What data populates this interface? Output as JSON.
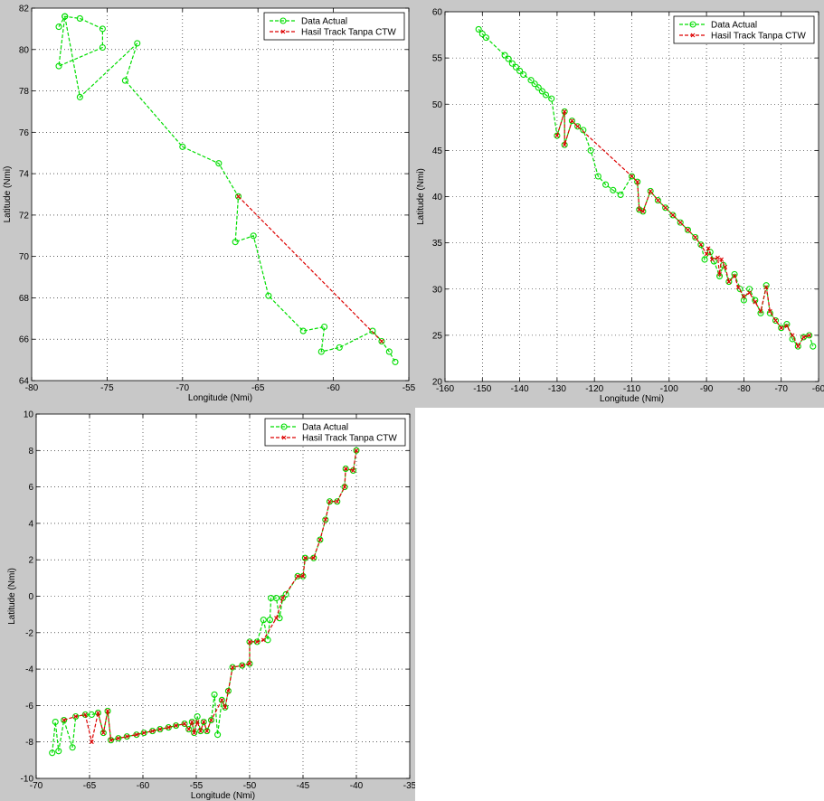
{
  "chart_data": [
    {
      "type": "line",
      "xlabel": "Longitude (Nmi)",
      "ylabel": "Latitude (Nmi)",
      "xlim": [
        -80,
        -55
      ],
      "ylim": [
        64,
        82
      ],
      "xticks": [
        -80,
        -75,
        -70,
        -65,
        -60,
        -55
      ],
      "yticks": [
        64,
        66,
        68,
        70,
        72,
        74,
        76,
        78,
        80,
        82
      ],
      "xtick_labels": [
        "-80",
        "-75",
        "-70",
        "-65",
        "-60",
        "-55"
      ],
      "ytick_labels": [
        "64",
        "66",
        "68",
        "70",
        "72",
        "74",
        "76",
        "78",
        "80",
        "82"
      ],
      "grid": true,
      "legend": "top-right",
      "series": [
        {
          "name": "Data Actual",
          "color": "#00dd00",
          "marker": "circle",
          "line": "dashed",
          "points": [
            [
              -78.2,
              81.1
            ],
            [
              -77.8,
              81.6
            ],
            [
              -76.8,
              81.5
            ],
            [
              -75.3,
              81.0
            ],
            [
              -75.3,
              80.1
            ],
            [
              -78.2,
              79.2
            ],
            [
              -77.8,
              81.6
            ],
            [
              -76.8,
              77.7
            ],
            [
              -73.0,
              80.3
            ],
            [
              -73.8,
              78.5
            ],
            [
              -70.0,
              75.3
            ],
            [
              -67.6,
              74.5
            ],
            [
              -66.3,
              72.9
            ],
            [
              -66.5,
              70.7
            ],
            [
              -65.3,
              71.0
            ],
            [
              -64.3,
              68.1
            ],
            [
              -62.0,
              66.4
            ],
            [
              -60.6,
              66.6
            ],
            [
              -60.8,
              65.4
            ],
            [
              -59.6,
              65.6
            ],
            [
              -57.4,
              66.4
            ],
            [
              -56.8,
              65.9
            ],
            [
              -56.3,
              65.4
            ],
            [
              -55.9,
              64.9
            ]
          ]
        },
        {
          "name": "Hasil Track Tanpa CTW",
          "color": "#dd0000",
          "marker": "x",
          "line": "dashed",
          "points": [
            [
              -66.3,
              72.9
            ],
            [
              -56.8,
              65.9
            ]
          ]
        }
      ]
    },
    {
      "type": "line",
      "xlabel": "Longitude (Nmi)",
      "ylabel": "Latitude (Nmi)",
      "xlim": [
        -160,
        -60
      ],
      "ylim": [
        20,
        60
      ],
      "xticks": [
        -160,
        -150,
        -140,
        -130,
        -120,
        -110,
        -100,
        -90,
        -80,
        -70,
        -60
      ],
      "yticks": [
        20,
        25,
        30,
        35,
        40,
        45,
        50,
        55,
        60
      ],
      "xtick_labels": [
        "-160",
        "-150",
        "-140",
        "-130",
        "-120",
        "-110",
        "-100",
        "-90",
        "-80",
        "-70",
        "-60"
      ],
      "ytick_labels": [
        "20",
        "25",
        "30",
        "35",
        "40",
        "45",
        "50",
        "55",
        "60"
      ],
      "grid": true,
      "legend": "top-right",
      "series": [
        {
          "name": "Data Actual",
          "color": "#00dd00",
          "marker": "circle",
          "line": "dashed",
          "points": [
            [
              -151,
              58.1
            ],
            [
              -150,
              57.6
            ],
            [
              -149,
              57.2
            ],
            [
              -144,
              55.3
            ],
            [
              -143,
              54.9
            ],
            [
              -142,
              54.4
            ],
            [
              -141,
              54.0
            ],
            [
              -140,
              53.6
            ],
            [
              -139,
              53.2
            ],
            [
              -137,
              52.6
            ],
            [
              -136,
              52.2
            ],
            [
              -135,
              51.8
            ],
            [
              -134,
              51.4
            ],
            [
              -133,
              51.0
            ],
            [
              -131.5,
              50.6
            ],
            [
              -130,
              46.6
            ],
            [
              -128,
              49.2
            ],
            [
              -128,
              45.6
            ],
            [
              -126,
              48.2
            ],
            [
              -124.5,
              47.6
            ],
            [
              -123,
              47.2
            ],
            [
              -121,
              45.0
            ],
            [
              -119,
              42.2
            ],
            [
              -117,
              41.3
            ],
            [
              -115,
              40.7
            ],
            [
              -113,
              40.2
            ],
            [
              -110,
              42.2
            ],
            [
              -108.5,
              41.6
            ],
            [
              -108,
              38.6
            ],
            [
              -107,
              38.4
            ],
            [
              -105,
              40.6
            ],
            [
              -103,
              39.6
            ],
            [
              -101,
              38.8
            ],
            [
              -99,
              38.0
            ],
            [
              -97,
              37.2
            ],
            [
              -95,
              36.4
            ],
            [
              -93,
              35.6
            ],
            [
              -91.5,
              34.8
            ],
            [
              -90.5,
              33.2
            ],
            [
              -89,
              34.0
            ],
            [
              -88,
              33.0
            ],
            [
              -86.5,
              31.4
            ],
            [
              -85.5,
              32.6
            ],
            [
              -84,
              30.8
            ],
            [
              -82.5,
              31.6
            ],
            [
              -81,
              30.0
            ],
            [
              -80,
              28.8
            ],
            [
              -78.5,
              30.0
            ],
            [
              -77,
              28.8
            ],
            [
              -75.5,
              27.4
            ],
            [
              -74,
              30.4
            ],
            [
              -73,
              27.4
            ],
            [
              -71.5,
              26.6
            ],
            [
              -70,
              25.8
            ],
            [
              -68.5,
              26.2
            ],
            [
              -67,
              24.6
            ],
            [
              -65.5,
              23.8
            ],
            [
              -64,
              24.8
            ],
            [
              -62.5,
              25.0
            ],
            [
              -61.5,
              23.8
            ]
          ]
        },
        {
          "name": "Hasil Track Tanpa CTW",
          "color": "#dd0000",
          "marker": "x",
          "line": "dashed",
          "points": [
            [
              -130,
              46.6
            ],
            [
              -128,
              49.2
            ],
            [
              -128,
              45.6
            ],
            [
              -126,
              48.2
            ],
            [
              -124.5,
              47.6
            ],
            [
              -110,
              42.2
            ],
            [
              -108.5,
              41.6
            ],
            [
              -108,
              38.6
            ],
            [
              -107,
              38.4
            ],
            [
              -105,
              40.6
            ],
            [
              -103,
              39.6
            ],
            [
              -101,
              38.8
            ],
            [
              -99,
              38.0
            ],
            [
              -97,
              37.2
            ],
            [
              -95,
              36.4
            ],
            [
              -93,
              35.6
            ],
            [
              -91.5,
              34.8
            ],
            [
              -90,
              33.8
            ],
            [
              -89.5,
              34.4
            ],
            [
              -88.5,
              33.2
            ],
            [
              -87,
              33.4
            ],
            [
              -86.5,
              31.6
            ],
            [
              -86,
              33.2
            ],
            [
              -85,
              32.4
            ],
            [
              -84,
              30.8
            ],
            [
              -82.5,
              31.4
            ],
            [
              -81.5,
              30.2
            ],
            [
              -80,
              29.2
            ],
            [
              -78.5,
              29.6
            ],
            [
              -77,
              28.6
            ],
            [
              -75.5,
              27.6
            ],
            [
              -74,
              30.2
            ],
            [
              -73,
              27.6
            ],
            [
              -71.5,
              26.6
            ],
            [
              -70,
              25.8
            ],
            [
              -68.5,
              26.0
            ],
            [
              -67,
              25.0
            ],
            [
              -65.5,
              23.8
            ],
            [
              -64,
              24.8
            ],
            [
              -62.5,
              25.0
            ]
          ]
        }
      ]
    },
    {
      "type": "line",
      "xlabel": "Longitude (Nmi)",
      "ylabel": "Latitude (Nmi)",
      "xlim": [
        -70,
        -35
      ],
      "ylim": [
        -10,
        10
      ],
      "xticks": [
        -70,
        -65,
        -60,
        -55,
        -50,
        -45,
        -40,
        -35
      ],
      "yticks": [
        -10,
        -8,
        -6,
        -4,
        -2,
        0,
        2,
        4,
        6,
        8,
        10
      ],
      "xtick_labels": [
        "-70",
        "-65",
        "-60",
        "-55",
        "-50",
        "-45",
        "-40",
        "-35"
      ],
      "ytick_labels": [
        "-10",
        "-8",
        "-6",
        "-4",
        "-2",
        "0",
        "2",
        "4",
        "6",
        "8",
        "10"
      ],
      "grid": true,
      "legend": "top-right",
      "series": [
        {
          "name": "Data Actual",
          "color": "#00dd00",
          "marker": "circle",
          "line": "dashed",
          "points": [
            [
              -68.5,
              -8.6
            ],
            [
              -68.2,
              -6.9
            ],
            [
              -67.9,
              -8.5
            ],
            [
              -67.4,
              -6.8
            ],
            [
              -66.6,
              -8.3
            ],
            [
              -66.3,
              -6.6
            ],
            [
              -65.4,
              -6.5
            ],
            [
              -64.8,
              -6.5
            ],
            [
              -64.2,
              -6.4
            ],
            [
              -63.7,
              -7.5
            ],
            [
              -63.3,
              -6.3
            ],
            [
              -63.0,
              -7.9
            ],
            [
              -62.3,
              -7.8
            ],
            [
              -61.5,
              -7.7
            ],
            [
              -60.6,
              -7.6
            ],
            [
              -59.9,
              -7.5
            ],
            [
              -59.1,
              -7.4
            ],
            [
              -58.4,
              -7.3
            ],
            [
              -57.6,
              -7.2
            ],
            [
              -56.9,
              -7.1
            ],
            [
              -56.1,
              -7.0
            ],
            [
              -55.7,
              -7.3
            ],
            [
              -55.4,
              -6.9
            ],
            [
              -55.2,
              -7.5
            ],
            [
              -54.9,
              -6.6
            ],
            [
              -54.6,
              -7.4
            ],
            [
              -54.3,
              -6.9
            ],
            [
              -54.0,
              -7.4
            ],
            [
              -53.6,
              -6.8
            ],
            [
              -53.3,
              -5.4
            ],
            [
              -53.0,
              -7.6
            ],
            [
              -52.6,
              -5.7
            ],
            [
              -52.3,
              -6.1
            ],
            [
              -52.0,
              -5.2
            ],
            [
              -51.6,
              -3.9
            ],
            [
              -50.7,
              -3.8
            ],
            [
              -50.0,
              -3.7
            ],
            [
              -50.0,
              -2.5
            ],
            [
              -49.3,
              -2.5
            ],
            [
              -48.7,
              -1.3
            ],
            [
              -48.3,
              -2.4
            ],
            [
              -48.1,
              -1.3
            ],
            [
              -48.0,
              -0.1
            ],
            [
              -47.5,
              -0.1
            ],
            [
              -47.2,
              -1.2
            ],
            [
              -46.9,
              -0.1
            ],
            [
              -46.6,
              0.1
            ],
            [
              -45.5,
              1.1
            ],
            [
              -45.0,
              1.1
            ],
            [
              -44.8,
              2.1
            ],
            [
              -44.0,
              2.1
            ],
            [
              -43.4,
              3.1
            ],
            [
              -42.9,
              4.2
            ],
            [
              -42.5,
              5.2
            ],
            [
              -41.8,
              5.2
            ],
            [
              -41.1,
              6.0
            ],
            [
              -41.0,
              7.0
            ],
            [
              -40.3,
              6.9
            ],
            [
              -40.0,
              8.0
            ]
          ]
        },
        {
          "name": "Hasil Track Tanpa CTW",
          "color": "#dd0000",
          "marker": "x",
          "line": "dashed",
          "points": [
            [
              -67.4,
              -6.8
            ],
            [
              -66.3,
              -6.6
            ],
            [
              -65.4,
              -6.5
            ],
            [
              -64.8,
              -8.0
            ],
            [
              -64.2,
              -6.4
            ],
            [
              -63.7,
              -7.5
            ],
            [
              -63.3,
              -6.3
            ],
            [
              -63.0,
              -7.9
            ],
            [
              -62.3,
              -7.8
            ],
            [
              -61.5,
              -7.7
            ],
            [
              -60.6,
              -7.6
            ],
            [
              -59.9,
              -7.5
            ],
            [
              -59.1,
              -7.4
            ],
            [
              -58.4,
              -7.3
            ],
            [
              -57.6,
              -7.2
            ],
            [
              -56.9,
              -7.1
            ],
            [
              -56.1,
              -7.0
            ],
            [
              -55.7,
              -7.3
            ],
            [
              -55.4,
              -6.9
            ],
            [
              -55.2,
              -7.5
            ],
            [
              -54.9,
              -6.9
            ],
            [
              -54.6,
              -7.4
            ],
            [
              -54.3,
              -6.9
            ],
            [
              -54.0,
              -7.4
            ],
            [
              -53.6,
              -6.8
            ],
            [
              -52.6,
              -5.7
            ],
            [
              -52.3,
              -6.1
            ],
            [
              -52.0,
              -5.2
            ],
            [
              -51.6,
              -3.9
            ],
            [
              -50.7,
              -3.8
            ],
            [
              -50.0,
              -3.7
            ],
            [
              -50.0,
              -2.5
            ],
            [
              -49.3,
              -2.5
            ],
            [
              -48.7,
              -2.4
            ],
            [
              -47.5,
              -1.2
            ],
            [
              -46.9,
              -0.1
            ],
            [
              -45.5,
              1.1
            ],
            [
              -45.0,
              1.1
            ],
            [
              -44.8,
              2.1
            ],
            [
              -44.0,
              2.1
            ],
            [
              -43.4,
              3.1
            ],
            [
              -42.9,
              4.2
            ],
            [
              -42.5,
              5.2
            ],
            [
              -41.8,
              5.2
            ],
            [
              -41.1,
              6.0
            ],
            [
              -41.0,
              7.0
            ],
            [
              -40.3,
              6.9
            ],
            [
              -40.0,
              8.0
            ]
          ]
        }
      ]
    }
  ]
}
